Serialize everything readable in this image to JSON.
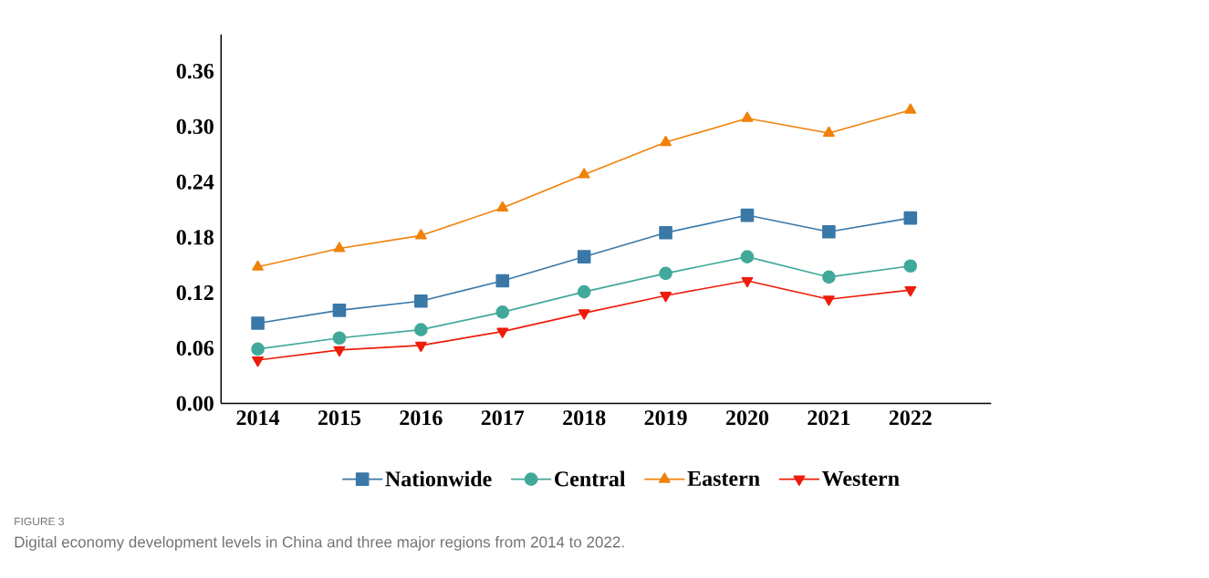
{
  "chart_data": {
    "type": "line",
    "categories": [
      "2014",
      "2015",
      "2016",
      "2017",
      "2018",
      "2019",
      "2020",
      "2021",
      "2022"
    ],
    "series": [
      {
        "name": "Nationwide",
        "color": "#3a78a8",
        "marker": "square",
        "values": [
          0.087,
          0.101,
          0.111,
          0.133,
          0.159,
          0.185,
          0.204,
          0.186,
          0.201
        ]
      },
      {
        "name": "Central",
        "color": "#41a99a",
        "marker": "circle",
        "values": [
          0.059,
          0.071,
          0.08,
          0.099,
          0.121,
          0.141,
          0.159,
          0.137,
          0.149
        ]
      },
      {
        "name": "Eastern",
        "color": "#f0820a",
        "marker": "triangle",
        "values": [
          0.148,
          0.168,
          0.182,
          0.212,
          0.248,
          0.283,
          0.309,
          0.293,
          0.318
        ]
      },
      {
        "name": "Western",
        "color": "#ee1c0a",
        "marker": "triangle-down",
        "values": [
          0.047,
          0.058,
          0.063,
          0.078,
          0.098,
          0.117,
          0.133,
          0.113,
          0.123
        ]
      }
    ],
    "ylim": [
      0,
      0.4
    ],
    "yticks": [
      {
        "value": 0,
        "label": "0.00"
      },
      {
        "value": 0.06,
        "label": "0.06"
      },
      {
        "value": 0.12,
        "label": "0.12"
      },
      {
        "value": 0.18,
        "label": "0.18"
      },
      {
        "value": 0.24,
        "label": "0.24"
      },
      {
        "value": 0.3,
        "label": "0.30"
      },
      {
        "value": 0.36,
        "label": "0.36"
      }
    ],
    "grid": false,
    "legend": "bottom",
    "line_style": "solid",
    "annotations": [
      "FIGURE 3",
      "Digital economy development levels in China and three major regions from 2014 to 2022."
    ]
  }
}
